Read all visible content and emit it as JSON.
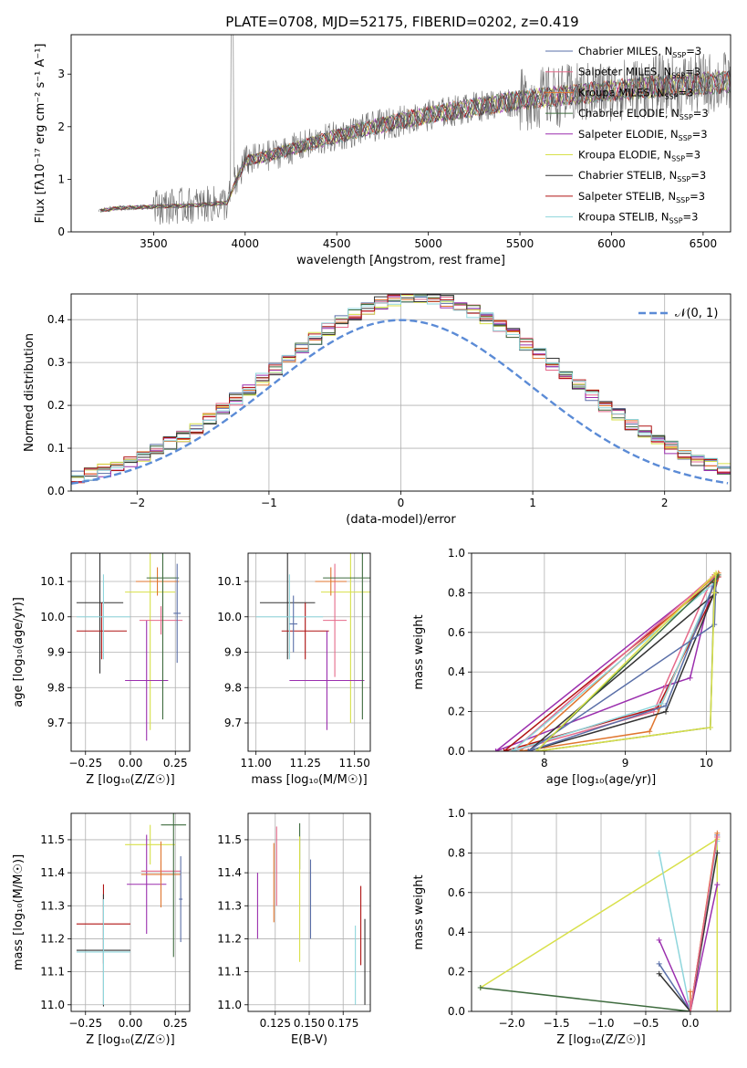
{
  "title": "PLATE=0708, MJD=52175, FIBERID=0202, z=0.419",
  "chart_data": [
    {
      "id": "spectrum",
      "type": "line",
      "xlabel": "wavelength [Angstrom, rest frame]",
      "ylabel": "Flux [fλ10⁻¹⁷ erg cm⁻² s⁻¹ A⁻¹]",
      "xlim": [
        3050,
        6650
      ],
      "ylim": [
        0,
        3.75
      ],
      "xticks": [
        3500,
        4000,
        4500,
        5000,
        5500,
        6000,
        6500
      ],
      "yticks": [
        0,
        1,
        2,
        3
      ],
      "grid": false,
      "legend_position": "top-right",
      "legend": [
        {
          "label": "Chabrier MILES, N",
          "sub": "SSP",
          "suffix": "=3",
          "color": "#5a6fa8"
        },
        {
          "label": "Salpeter MILES, N",
          "sub": "SSP",
          "suffix": "=3",
          "color": "#e56a8a"
        },
        {
          "label": "Kroupa MILES, N",
          "sub": "SSP",
          "suffix": "=3",
          "color": "#e0762f"
        },
        {
          "label": "Chabrier ELODIE, N",
          "sub": "SSP",
          "suffix": "=3",
          "color": "#3e6b3e"
        },
        {
          "label": "Salpeter ELODIE, N",
          "sub": "SSP",
          "suffix": "=3",
          "color": "#9b2fae"
        },
        {
          "label": "Kroupa ELODIE, N",
          "sub": "SSP",
          "suffix": "=3",
          "color": "#d8e04a"
        },
        {
          "label": "Chabrier STELIB, N",
          "sub": "SSP",
          "suffix": "=3",
          "color": "#333333"
        },
        {
          "label": "Salpeter STELIB, N",
          "sub": "SSP",
          "suffix": "=3",
          "color": "#b01414"
        },
        {
          "label": "Kroupa STELIB, N",
          "sub": "SSP",
          "suffix": "=3",
          "color": "#8fd6dc"
        }
      ],
      "continuum": {
        "wavelength": [
          3200,
          3300,
          3500,
          3700,
          3900,
          4000,
          4100,
          4300,
          4500,
          4700,
          4900,
          5100,
          5300,
          5500,
          5700,
          5900,
          6100,
          6300,
          6500,
          6650
        ],
        "flux": [
          0.4,
          0.45,
          0.48,
          0.5,
          0.55,
          1.35,
          1.42,
          1.62,
          1.82,
          2.0,
          2.15,
          2.28,
          2.4,
          2.5,
          2.58,
          2.65,
          2.72,
          2.78,
          2.82,
          2.85
        ]
      }
    },
    {
      "id": "residuals",
      "type": "histogram",
      "xlabel": "(data-model)/error",
      "ylabel": "Normed distribution",
      "xlim": [
        -2.5,
        2.5
      ],
      "ylim": [
        0,
        0.46
      ],
      "xticks": [
        -2,
        -1,
        0,
        1,
        2
      ],
      "yticks": [
        0.0,
        0.1,
        0.2,
        0.3,
        0.4
      ],
      "grid": true,
      "legend_position": "top-right",
      "legend": [
        {
          "label": "𝒩(0, 1)",
          "color": "#5b8bd6",
          "style": "dashed"
        }
      ],
      "bin_width": 0.1,
      "bin_start": -2.5
    },
    {
      "id": "age_vs_Z",
      "type": "errorbar",
      "xlabel": "Z [log₁₀(Z/Z☉)]",
      "ylabel": "age  [log₁₀(age/yr)]",
      "xlim": [
        -0.33,
        0.33
      ],
      "ylim": [
        9.62,
        10.18
      ],
      "xticks": [
        -0.25,
        0.0,
        0.25
      ],
      "yticks": [
        9.7,
        9.8,
        9.9,
        10.0,
        10.1
      ],
      "grid": true,
      "points": [
        {
          "x": -0.17,
          "y": 10.04,
          "xerr": 0.13,
          "yerr": 0.2,
          "color": "#333333"
        },
        {
          "x": -0.16,
          "y": 9.96,
          "xerr": 0.14,
          "yerr": 0.08,
          "color": "#b01414"
        },
        {
          "x": -0.15,
          "y": 10.0,
          "xerr": 0.15,
          "yerr": 0.12,
          "color": "#8fd6dc"
        },
        {
          "x": 0.11,
          "y": 10.07,
          "xerr": 0.14,
          "yerr": 0.39,
          "color": "#d8e04a"
        },
        {
          "x": 0.09,
          "y": 9.82,
          "xerr": 0.12,
          "yerr": 0.17,
          "color": "#9b2fae"
        },
        {
          "x": 0.17,
          "y": 9.99,
          "xerr": 0.12,
          "yerr": 0.04,
          "color": "#e56a8a"
        },
        {
          "x": 0.15,
          "y": 10.1,
          "xerr": 0.12,
          "yerr": 0.04,
          "color": "#e0762f"
        },
        {
          "x": 0.18,
          "y": 10.11,
          "xerr": 0.09,
          "yerr": 0.4,
          "color": "#3e6b3e"
        },
        {
          "x": 0.26,
          "y": 10.01,
          "xerr": 0.02,
          "yerr": 0.14,
          "color": "#5a6fa8"
        }
      ]
    },
    {
      "id": "age_vs_mass",
      "type": "errorbar",
      "xlabel": "mass [log₁₀(M/M☉)]",
      "xlim": [
        10.96,
        11.58
      ],
      "ylim": [
        9.62,
        10.18
      ],
      "xticks": [
        11.0,
        11.25,
        11.5
      ],
      "yticks": [
        9.7,
        9.8,
        9.9,
        10.0,
        10.1
      ],
      "grid": true,
      "points": [
        {
          "x": 11.16,
          "y": 10.04,
          "xerr": 0.14,
          "yerr": 0.16,
          "color": "#333333"
        },
        {
          "x": 11.25,
          "y": 9.96,
          "xerr": 0.12,
          "yerr": 0.08,
          "color": "#b01414"
        },
        {
          "x": 11.17,
          "y": 10.0,
          "xerr": 0.17,
          "yerr": 0.12,
          "color": "#8fd6dc"
        },
        {
          "x": 11.48,
          "y": 10.07,
          "xerr": 0.15,
          "yerr": 0.37,
          "color": "#d8e04a"
        },
        {
          "x": 11.36,
          "y": 9.82,
          "xerr": 0.19,
          "yerr": 0.14,
          "color": "#9b2fae"
        },
        {
          "x": 11.4,
          "y": 9.99,
          "xerr": 0.06,
          "yerr": 0.16,
          "color": "#e56a8a"
        },
        {
          "x": 11.38,
          "y": 10.1,
          "xerr": 0.08,
          "yerr": 0.04,
          "color": "#e0762f"
        },
        {
          "x": 11.54,
          "y": 10.11,
          "xerr": 0.2,
          "yerr": 0.4,
          "color": "#3e6b3e"
        },
        {
          "x": 11.19,
          "y": 9.98,
          "xerr": 0.02,
          "yerr": 0.08,
          "color": "#5a6fa8"
        }
      ]
    },
    {
      "id": "massweight_vs_age",
      "type": "line",
      "xlabel": "age  [log₁₀(age/yr)]",
      "ylabel": "mass weight",
      "xlim": [
        7.1,
        10.3
      ],
      "ylim": [
        0,
        1.0
      ],
      "xticks": [
        8,
        9,
        10
      ],
      "yticks": [
        0.0,
        0.2,
        0.4,
        0.6,
        0.8,
        1.0
      ],
      "grid": true,
      "series": [
        {
          "color": "#9b2fae",
          "x": [
            7.4,
            9.5,
            9.8,
            10.1,
            7.4
          ],
          "y": [
            0.0,
            0.33,
            0.37,
            0.88,
            0.0
          ]
        },
        {
          "color": "#b01414",
          "x": [
            7.5,
            9.4,
            10.1,
            10.15,
            7.5
          ],
          "y": [
            0.0,
            0.22,
            0.8,
            0.88,
            0.0
          ]
        },
        {
          "color": "#e0762f",
          "x": [
            7.7,
            9.3,
            10.12,
            10.15,
            7.7
          ],
          "y": [
            0.0,
            0.1,
            0.86,
            0.9,
            0.0
          ]
        },
        {
          "color": "#e56a8a",
          "x": [
            7.6,
            9.35,
            10.08,
            10.1,
            7.6
          ],
          "y": [
            0.0,
            0.2,
            0.88,
            0.89,
            0.0
          ]
        },
        {
          "color": "#8fd6dc",
          "x": [
            7.6,
            9.45,
            10.1,
            10.1,
            7.6
          ],
          "y": [
            0.0,
            0.24,
            0.85,
            0.85,
            0.0
          ]
        },
        {
          "color": "#333333",
          "x": [
            7.8,
            9.5,
            10.1,
            10.12,
            7.8
          ],
          "y": [
            0.0,
            0.2,
            0.8,
            0.8,
            0.0
          ]
        },
        {
          "color": "#5a6fa8",
          "x": [
            7.8,
            9.5,
            10.12,
            10.1,
            7.8
          ],
          "y": [
            0.0,
            0.23,
            0.87,
            0.64,
            0.0
          ]
        },
        {
          "color": "#3e6b3e",
          "x": [
            7.9,
            10.05,
            10.1,
            10.15,
            7.9
          ],
          "y": [
            0.0,
            0.12,
            0.85,
            0.89,
            0.0
          ]
        },
        {
          "color": "#d8e04a",
          "x": [
            7.9,
            10.05,
            10.1,
            10.12,
            7.9
          ],
          "y": [
            0.0,
            0.12,
            0.8,
            0.9,
            0.0
          ]
        }
      ]
    },
    {
      "id": "mass_vs_Z",
      "type": "errorbar",
      "xlabel": "Z [log₁₀(Z/Z☉)]",
      "ylabel": "mass [log₁₀(M/M☉)]",
      "xlim": [
        -0.33,
        0.33
      ],
      "ylim": [
        10.98,
        11.58
      ],
      "xticks": [
        -0.25,
        0.0,
        0.25
      ],
      "yticks": [
        11.0,
        11.1,
        11.2,
        11.3,
        11.4,
        11.5
      ],
      "grid": true,
      "points": [
        {
          "x": -0.15,
          "y": 11.245,
          "xerr": 0.15,
          "yerr": 0.12,
          "color": "#b01414"
        },
        {
          "x": -0.15,
          "y": 11.165,
          "xerr": 0.15,
          "yerr": 0.17,
          "color": "#333333"
        },
        {
          "x": -0.15,
          "y": 11.16,
          "xerr": 0.15,
          "yerr": 0.16,
          "color": "#8fd6dc"
        },
        {
          "x": 0.11,
          "y": 11.485,
          "xerr": 0.14,
          "yerr": 0.06,
          "color": "#d8e04a"
        },
        {
          "x": 0.09,
          "y": 11.365,
          "xerr": 0.11,
          "yerr": 0.15,
          "color": "#9b2fae"
        },
        {
          "x": 0.17,
          "y": 11.405,
          "xerr": 0.11,
          "yerr": 0.03,
          "color": "#e56a8a"
        },
        {
          "x": 0.17,
          "y": 11.395,
          "xerr": 0.11,
          "yerr": 0.1,
          "color": "#e0762f"
        },
        {
          "x": 0.24,
          "y": 11.545,
          "xerr": 0.07,
          "yerr": 0.4,
          "color": "#3e6b3e"
        },
        {
          "x": 0.28,
          "y": 11.32,
          "xerr": 0.01,
          "yerr": 0.13,
          "color": "#5a6fa8"
        }
      ]
    },
    {
      "id": "mass_vs_ebv",
      "type": "errorbar",
      "xlabel": "E(B-V)",
      "xlim": [
        0.105,
        0.195
      ],
      "ylim": [
        10.98,
        11.58
      ],
      "xticks": [
        0.125,
        0.15,
        0.175
      ],
      "yticks": [
        11.0,
        11.1,
        11.2,
        11.3,
        11.4,
        11.5
      ],
      "grid": true,
      "points": [
        {
          "x": 0.112,
          "y": 11.3,
          "xerr": 0,
          "yerr": 0.1,
          "color": "#9b2fae"
        },
        {
          "x": 0.124,
          "y": 11.37,
          "xerr": 0,
          "yerr": 0.12,
          "color": "#e0762f"
        },
        {
          "x": 0.126,
          "y": 11.42,
          "xerr": 0,
          "yerr": 0.12,
          "color": "#e56a8a"
        },
        {
          "x": 0.143,
          "y": 11.48,
          "xerr": 0,
          "yerr": 0.07,
          "color": "#3e6b3e"
        },
        {
          "x": 0.143,
          "y": 11.32,
          "xerr": 0,
          "yerr": 0.19,
          "color": "#d8e04a"
        },
        {
          "x": 0.151,
          "y": 11.32,
          "xerr": 0,
          "yerr": 0.12,
          "color": "#5a6fa8"
        },
        {
          "x": 0.184,
          "y": 11.12,
          "xerr": 0,
          "yerr": 0.12,
          "color": "#8fd6dc"
        },
        {
          "x": 0.188,
          "y": 11.24,
          "xerr": 0,
          "yerr": 0.12,
          "color": "#b01414"
        },
        {
          "x": 0.191,
          "y": 11.13,
          "xerr": 0,
          "yerr": 0.13,
          "color": "#333333"
        }
      ]
    },
    {
      "id": "massweight_vs_Z",
      "type": "line",
      "xlabel": "Z [log₁₀(Z/Z☉)]",
      "ylabel": "mass weight",
      "xlim": [
        -2.45,
        0.45
      ],
      "ylim": [
        0,
        1.0
      ],
      "xticks": [
        -2.0,
        -1.5,
        -1.0,
        -0.5,
        0.0
      ],
      "yticks": [
        0.0,
        0.2,
        0.4,
        0.6,
        0.8,
        1.0
      ],
      "grid": true,
      "series": [
        {
          "color": "#d8e04a",
          "x": [
            -2.35,
            0.3,
            0.3
          ],
          "y": [
            0.12,
            0.87,
            0.0
          ]
        },
        {
          "color": "#3e6b3e",
          "x": [
            -2.35,
            0.0,
            0.3
          ],
          "y": [
            0.12,
            0.0,
            0.88
          ]
        },
        {
          "color": "#9b2fae",
          "x": [
            -0.35,
            0.0,
            0.3
          ],
          "y": [
            0.36,
            0.0,
            0.64
          ]
        },
        {
          "color": "#8fd6dc",
          "x": [
            -0.35,
            0.0,
            0.3
          ],
          "y": [
            0.8,
            0.0,
            0.86
          ]
        },
        {
          "color": "#5a6fa8",
          "x": [
            -0.35,
            0.0,
            0.3
          ],
          "y": [
            0.24,
            0.0,
            0.89
          ]
        },
        {
          "color": "#333333",
          "x": [
            -0.35,
            0.0,
            0.3
          ],
          "y": [
            0.19,
            0.0,
            0.8
          ]
        },
        {
          "color": "#e0762f",
          "x": [
            0.0,
            0.0,
            0.3
          ],
          "y": [
            0.1,
            0.0,
            0.9
          ]
        },
        {
          "color": "#e56a8a",
          "x": [
            0.0,
            0.0,
            0.3
          ],
          "y": [
            0.05,
            0.0,
            0.88
          ]
        }
      ]
    }
  ]
}
